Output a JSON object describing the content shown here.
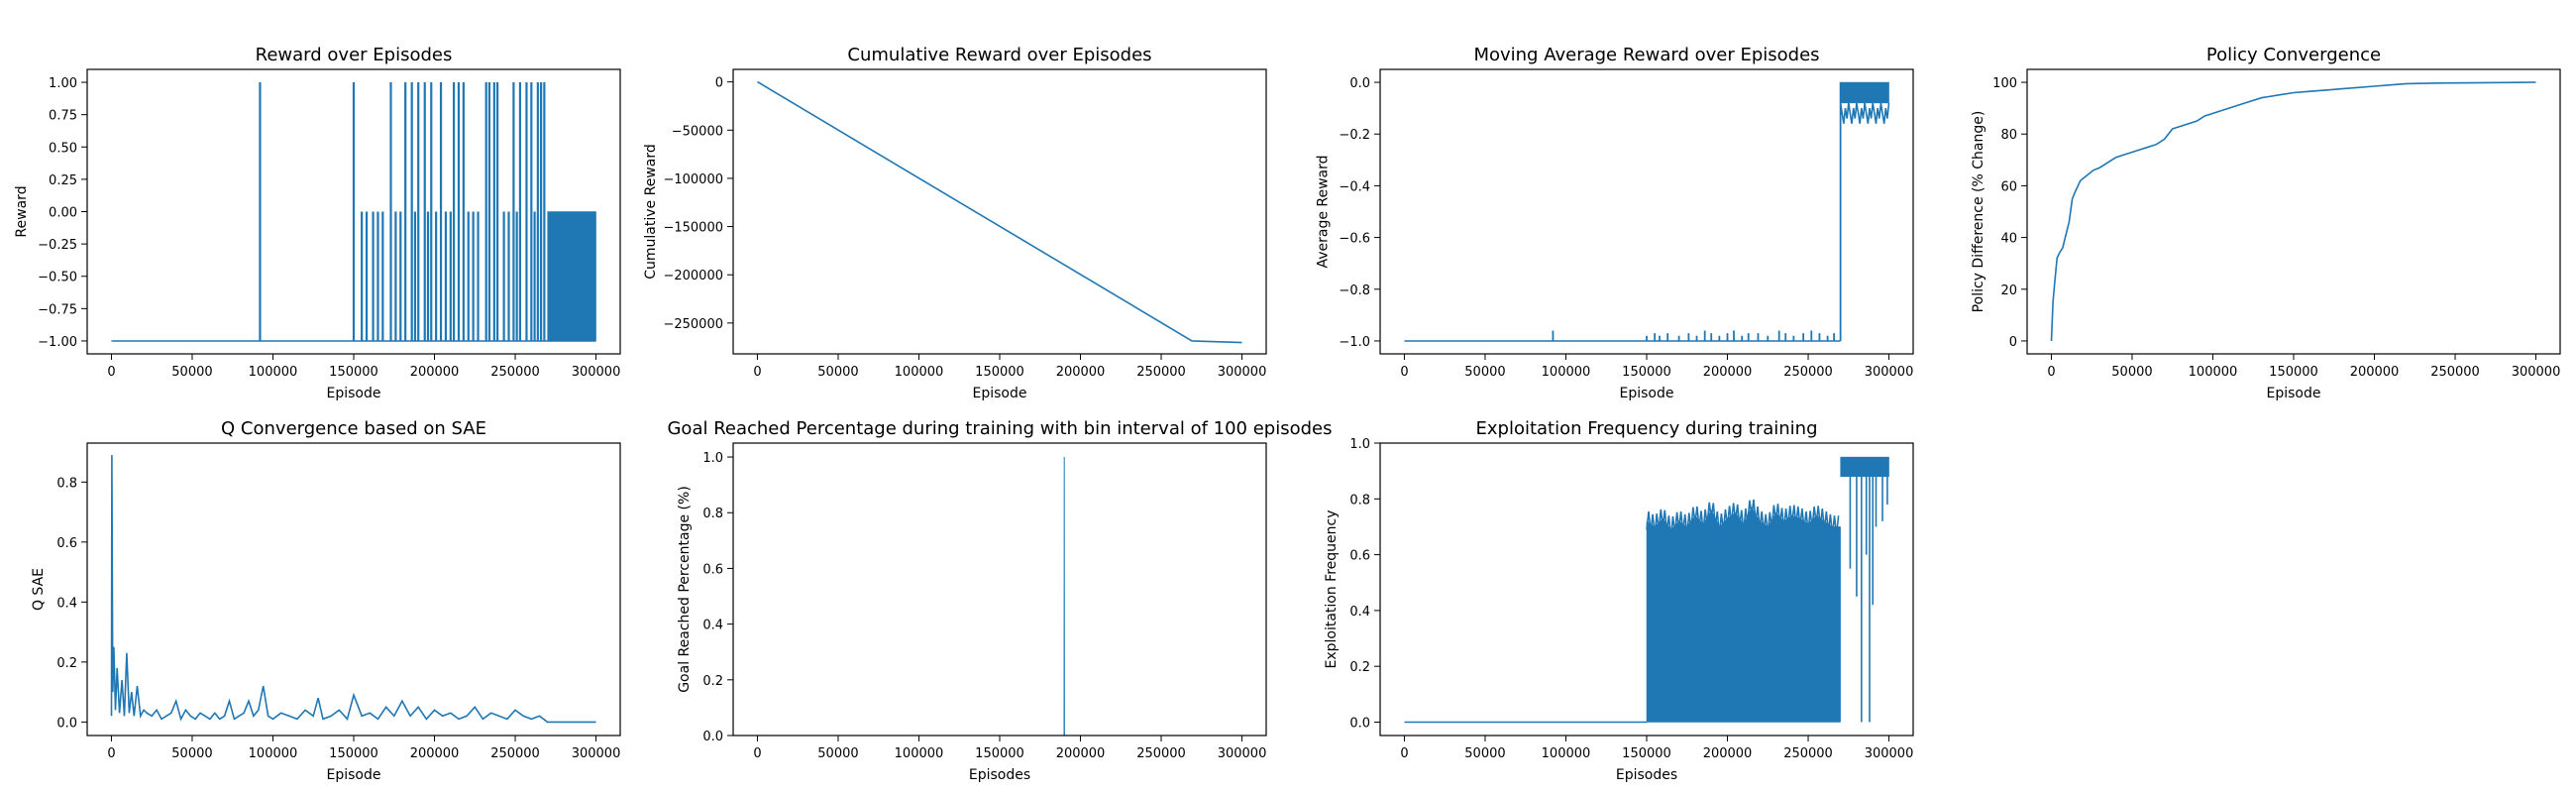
{
  "figure": {
    "suptitle": ""
  },
  "chart_data": [
    {
      "id": "reward",
      "type": "line",
      "title": "Reward over Episodes",
      "xlabel": "Episode",
      "ylabel": "Reward",
      "xlim": [
        -15000,
        315000
      ],
      "ylim": [
        -1.1,
        1.1
      ],
      "xticks": [
        0,
        50000,
        100000,
        150000,
        200000,
        250000,
        300000
      ],
      "yticks": [
        -1.0,
        -0.75,
        -0.5,
        -0.25,
        0.0,
        0.25,
        0.5,
        0.75,
        1.0
      ],
      "ytick_labels": [
        "−1.00",
        "−0.75",
        "−0.50",
        "−0.25",
        "0.00",
        "0.25",
        "0.50",
        "0.75",
        "1.00"
      ],
      "baseline": -1.0,
      "spikes_to_1": [
        92000,
        150000,
        173000,
        182000,
        186000,
        190000,
        194000,
        198000,
        204000,
        212000,
        215000,
        218000,
        232000,
        234000,
        237000,
        239000,
        249000,
        253000,
        257000,
        260000,
        264000,
        266000,
        268000
      ],
      "spikes_to_0": [
        155000,
        158000,
        162000,
        165000,
        168000,
        176000,
        179000,
        188000,
        196000,
        201000,
        207000,
        210000,
        221000,
        224000,
        227000,
        243000,
        246000,
        251000,
        262000
      ],
      "dense_band": {
        "x_start": 270000,
        "x_end": 300000,
        "y_low": -1.0,
        "y_high": 0.0
      },
      "series": [
        {
          "values_summary": "mostly -1 with sparse episodes reaching 0 or 1; after ~270000 alternates between -1 and 0"
        }
      ]
    },
    {
      "id": "cumulative",
      "type": "line",
      "title": "Cumulative Reward over Episodes",
      "xlabel": "Episode",
      "ylabel": "Cumulative Reward",
      "xlim": [
        -15000,
        315000
      ],
      "ylim": [
        -282000,
        13000
      ],
      "xticks": [
        0,
        50000,
        100000,
        150000,
        200000,
        250000,
        300000
      ],
      "yticks": [
        0,
        -50000,
        -100000,
        -150000,
        -200000,
        -250000
      ],
      "ytick_labels": [
        "0",
        "−50000",
        "−100000",
        "−150000",
        "−200000",
        "−250000"
      ],
      "x": [
        0,
        269000,
        300000
      ],
      "y": [
        0,
        -268500,
        -270300
      ]
    },
    {
      "id": "moving_avg",
      "type": "line",
      "title": "Moving Average Reward over Episodes",
      "xlabel": "Episode",
      "ylabel": "Average Reward",
      "xlim": [
        -15000,
        315000
      ],
      "ylim": [
        -1.05,
        0.05
      ],
      "xticks": [
        0,
        50000,
        100000,
        150000,
        200000,
        250000,
        300000
      ],
      "yticks": [
        0.0,
        -0.2,
        -0.4,
        -0.6,
        -0.8,
        -1.0
      ],
      "ytick_labels": [
        "0.0",
        "−0.2",
        "−0.4",
        "−0.6",
        "−0.8",
        "−1.0"
      ],
      "baseline": -1.0,
      "bumps": [
        [
          92000,
          -0.96
        ],
        [
          150000,
          -0.98
        ],
        [
          155000,
          -0.97
        ],
        [
          158000,
          -0.98
        ],
        [
          163000,
          -0.97
        ],
        [
          170000,
          -0.98
        ],
        [
          176000,
          -0.97
        ],
        [
          181000,
          -0.98
        ],
        [
          186000,
          -0.96
        ],
        [
          190000,
          -0.97
        ],
        [
          195000,
          -0.98
        ],
        [
          200000,
          -0.97
        ],
        [
          204000,
          -0.96
        ],
        [
          209000,
          -0.98
        ],
        [
          213000,
          -0.97
        ],
        [
          219000,
          -0.97
        ],
        [
          225000,
          -0.98
        ],
        [
          232000,
          -0.96
        ],
        [
          236000,
          -0.97
        ],
        [
          241000,
          -0.98
        ],
        [
          247000,
          -0.97
        ],
        [
          252000,
          -0.96
        ],
        [
          257000,
          -0.97
        ],
        [
          262000,
          -0.98
        ],
        [
          266000,
          -0.97
        ]
      ],
      "jump_x": 270000,
      "high_band": {
        "x_start": 270000,
        "x_end": 300000,
        "y_low": -0.18,
        "y_high": 0.0
      }
    },
    {
      "id": "policy",
      "type": "line",
      "title": "Policy Convergence",
      "xlabel": "Episode",
      "ylabel": "Policy Difference (% Change)",
      "xlim": [
        -15000,
        315000
      ],
      "ylim": [
        -5,
        105
      ],
      "xticks": [
        0,
        50000,
        100000,
        150000,
        200000,
        250000,
        300000
      ],
      "yticks": [
        0,
        20,
        40,
        60,
        80,
        100
      ],
      "ytick_labels": [
        "0",
        "20",
        "40",
        "60",
        "80",
        "100"
      ],
      "x": [
        0,
        1000,
        2000,
        3500,
        5000,
        7000,
        9000,
        11000,
        13000,
        15000,
        18000,
        22000,
        26000,
        30000,
        35000,
        40000,
        45000,
        50000,
        55000,
        60000,
        65000,
        70000,
        75000,
        80000,
        85000,
        90000,
        95000,
        100000,
        105000,
        110000,
        115000,
        120000,
        130000,
        140000,
        150000,
        160000,
        170000,
        180000,
        190000,
        200000,
        210000,
        220000,
        240000,
        260000,
        280000,
        300000
      ],
      "y": [
        0,
        15,
        22,
        32,
        34,
        36,
        41,
        46,
        55,
        58,
        62,
        64,
        66,
        67,
        69,
        71,
        72,
        73,
        74,
        75,
        76,
        78,
        82,
        83,
        84,
        85,
        87,
        88,
        89,
        90,
        91,
        92,
        94,
        95,
        96,
        96.5,
        97,
        97.5,
        98,
        98.5,
        99,
        99.5,
        99.7,
        99.8,
        99.9,
        100
      ]
    },
    {
      "id": "q_sae",
      "type": "line",
      "title": "Q Convergence based on SAE",
      "xlabel": "Episode",
      "ylabel": "Q SAE",
      "xlim": [
        -15000,
        315000
      ],
      "ylim": [
        -0.045,
        0.93
      ],
      "xticks": [
        0,
        50000,
        100000,
        150000,
        200000,
        250000,
        300000
      ],
      "yticks": [
        0.0,
        0.2,
        0.4,
        0.6,
        0.8
      ],
      "ytick_labels": [
        "0.0",
        "0.2",
        "0.4",
        "0.6",
        "0.8"
      ],
      "x": [
        0,
        300,
        800,
        1500,
        2500,
        3500,
        5000,
        6500,
        8000,
        9500,
        11000,
        12500,
        14000,
        16000,
        18000,
        20000,
        22000,
        25000,
        28000,
        31000,
        34000,
        37000,
        40000,
        43000,
        46000,
        49000,
        52000,
        55000,
        58000,
        61000,
        64000,
        67000,
        70000,
        73000,
        76000,
        79000,
        82000,
        85000,
        88000,
        91000,
        94000,
        97000,
        100000,
        105000,
        110000,
        115000,
        120000,
        125000,
        128000,
        131000,
        136000,
        141000,
        146000,
        150000,
        155000,
        160000,
        165000,
        170000,
        175000,
        180000,
        185000,
        190000,
        195000,
        200000,
        205000,
        210000,
        215000,
        220000,
        225000,
        230000,
        235000,
        240000,
        245000,
        250000,
        255000,
        260000,
        265000,
        270000,
        300000
      ],
      "y": [
        0.02,
        0.89,
        0.1,
        0.25,
        0.04,
        0.18,
        0.03,
        0.14,
        0.02,
        0.23,
        0.03,
        0.1,
        0.02,
        0.12,
        0.02,
        0.04,
        0.03,
        0.02,
        0.04,
        0.01,
        0.02,
        0.03,
        0.07,
        0.01,
        0.04,
        0.02,
        0.01,
        0.03,
        0.02,
        0.01,
        0.03,
        0.01,
        0.02,
        0.07,
        0.01,
        0.02,
        0.03,
        0.07,
        0.02,
        0.04,
        0.12,
        0.02,
        0.01,
        0.03,
        0.02,
        0.01,
        0.04,
        0.02,
        0.08,
        0.01,
        0.02,
        0.04,
        0.01,
        0.09,
        0.02,
        0.03,
        0.01,
        0.05,
        0.02,
        0.07,
        0.02,
        0.05,
        0.01,
        0.04,
        0.02,
        0.03,
        0.01,
        0.02,
        0.05,
        0.01,
        0.03,
        0.02,
        0.01,
        0.04,
        0.02,
        0.01,
        0.02,
        0.0,
        0.0
      ]
    },
    {
      "id": "goal",
      "type": "line",
      "title": "Goal Reached Percentage during training with bin interval of 100 episodes",
      "xlabel": "Episodes",
      "ylabel": "Goal Reached Percentage (%)",
      "xlim": [
        -15000,
        315000
      ],
      "ylim": [
        0.0,
        1.05
      ],
      "xticks": [
        0,
        50000,
        100000,
        150000,
        200000,
        250000,
        300000
      ],
      "yticks": [
        0.0,
        0.2,
        0.4,
        0.6,
        0.8,
        1.0
      ],
      "ytick_labels": [
        "0.0",
        "0.2",
        "0.4",
        "0.6",
        "0.8",
        "1.0"
      ],
      "x": [
        0,
        189900,
        190000,
        190100,
        300000
      ],
      "y": [
        0,
        0,
        1.0,
        0,
        0
      ]
    },
    {
      "id": "exploit",
      "type": "line",
      "title": "Exploitation Frequency during training",
      "xlabel": "Episodes",
      "ylabel": "Exploitation Frequency",
      "xlim": [
        -15000,
        315000
      ],
      "ylim": [
        -0.048,
        1.0
      ],
      "xticks": [
        0,
        50000,
        100000,
        150000,
        200000,
        250000,
        300000
      ],
      "yticks": [
        0.0,
        0.2,
        0.4,
        0.6,
        0.8,
        1.0
      ],
      "ytick_labels": [
        "0.0",
        "0.2",
        "0.4",
        "0.6",
        "0.8",
        "1.0"
      ],
      "baseline_until": 150000,
      "band_top": [
        [
          150000,
          0.72
        ],
        [
          155000,
          0.7
        ],
        [
          160000,
          0.73
        ],
        [
          165000,
          0.69
        ],
        [
          170000,
          0.72
        ],
        [
          175000,
          0.7
        ],
        [
          180000,
          0.74
        ],
        [
          185000,
          0.71
        ],
        [
          190000,
          0.76
        ],
        [
          195000,
          0.7
        ],
        [
          200000,
          0.73
        ],
        [
          205000,
          0.75
        ],
        [
          210000,
          0.71
        ],
        [
          215000,
          0.77
        ],
        [
          220000,
          0.72
        ],
        [
          225000,
          0.7
        ],
        [
          230000,
          0.75
        ],
        [
          235000,
          0.72
        ],
        [
          240000,
          0.74
        ],
        [
          245000,
          0.73
        ],
        [
          250000,
          0.71
        ],
        [
          255000,
          0.74
        ],
        [
          260000,
          0.72
        ],
        [
          265000,
          0.7
        ],
        [
          270000,
          0.7
        ]
      ],
      "band_bottom": 0.0,
      "high_band": {
        "x_start": 270000,
        "x_end": 300000,
        "y_low": 0.88,
        "y_high": 0.95
      },
      "dips": [
        [
          276000,
          0.55
        ],
        [
          280000,
          0.45
        ],
        [
          283000,
          0.0
        ],
        [
          286000,
          0.6
        ],
        [
          288000,
          0.0
        ],
        [
          290000,
          0.42
        ],
        [
          292000,
          0.7
        ],
        [
          296000,
          0.72
        ],
        [
          299000,
          0.78
        ]
      ]
    }
  ]
}
